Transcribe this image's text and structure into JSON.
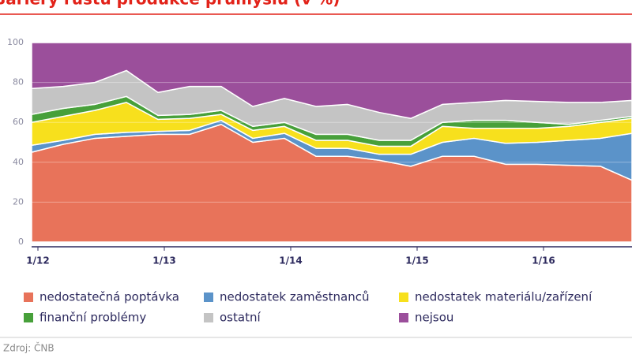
{
  "chart_data": {
    "type": "stacked_area",
    "title": "Bariéry růstu produkce průmyslu (v %)",
    "categories": [
      "1/12",
      null,
      null,
      null,
      "1/13",
      null,
      null,
      null,
      "1/14",
      null,
      null,
      null,
      "1/15",
      null,
      null,
      null,
      "1/16",
      null,
      null,
      null
    ],
    "series": [
      {
        "name": "nedostatečná poptávka",
        "color": "#e8735a",
        "values": [
          45,
          49,
          52,
          53,
          54,
          54,
          59,
          50,
          52,
          43,
          43,
          41,
          38,
          43,
          43,
          39,
          39,
          38.5,
          38,
          31
        ]
      },
      {
        "name": "nedostatek zaměstnanců",
        "color": "#5b93c9",
        "values": [
          3.5,
          2,
          2,
          2,
          1.5,
          2,
          2,
          2,
          2.5,
          4,
          4,
          3,
          6,
          7,
          9,
          10.5,
          11,
          12.5,
          14,
          23.5
        ]
      },
      {
        "name": "nedostatek materiálu/zařízení",
        "color": "#f7e01d",
        "values": [
          11.5,
          12,
          12,
          15,
          6,
          6,
          3,
          4,
          3.5,
          4,
          4,
          4,
          4,
          8,
          5,
          7.5,
          7,
          7,
          8,
          7.5
        ]
      },
      {
        "name": "finanční problémy",
        "color": "#47a03a",
        "values": [
          4,
          4,
          3,
          3,
          2,
          2,
          2,
          2,
          2,
          3,
          3,
          3,
          3,
          2,
          4,
          4,
          3,
          1,
          1,
          1
        ]
      },
      {
        "name": "ostatní",
        "color": "#c4c4c4",
        "values": [
          13,
          11,
          11,
          13,
          11.5,
          14,
          12,
          10,
          12,
          14,
          15,
          14,
          11,
          9,
          9,
          10,
          10.5,
          11,
          9,
          8
        ]
      },
      {
        "name": "nejsou",
        "color": "#9b4f9b",
        "values": [
          23,
          22,
          20,
          14,
          25,
          22,
          22,
          32,
          28,
          32,
          31,
          35,
          38,
          31,
          30,
          29,
          29.5,
          30,
          30,
          29
        ]
      }
    ],
    "ylim": [
      0,
      100
    ],
    "yticks": [
      0,
      20,
      40,
      60,
      80,
      100
    ],
    "grid": true,
    "legend": "bottom",
    "source": "Zdroj: ČNB"
  }
}
